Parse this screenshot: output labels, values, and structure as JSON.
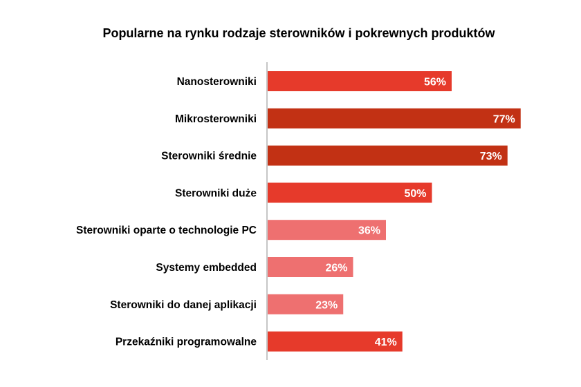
{
  "chart_data": {
    "type": "bar",
    "orientation": "horizontal",
    "title": "Popularne na rynku rodzaje sterowników i pokrewnych produktów",
    "xlabel": "",
    "ylabel": "",
    "xlim": [
      0,
      100
    ],
    "grid": false,
    "legend": "none",
    "categories": [
      "Nanosterowniki",
      "Mikrosterowniki",
      "Sterowniki średnie",
      "Sterowniki duże",
      "Sterowniki oparte o technologie PC",
      "Systemy embedded",
      "Sterowniki do danej aplikacji",
      "Przekaźniki programowalne"
    ],
    "values": [
      56,
      77,
      73,
      50,
      36,
      26,
      23,
      41
    ],
    "value_labels": [
      "56%",
      "77%",
      "73%",
      "50%",
      "36%",
      "26%",
      "23%",
      "41%"
    ],
    "colors": [
      "#e63a2b",
      "#c23114",
      "#c23114",
      "#e63a2b",
      "#ee7070",
      "#ee7070",
      "#ee7070",
      "#e63a2b"
    ]
  }
}
